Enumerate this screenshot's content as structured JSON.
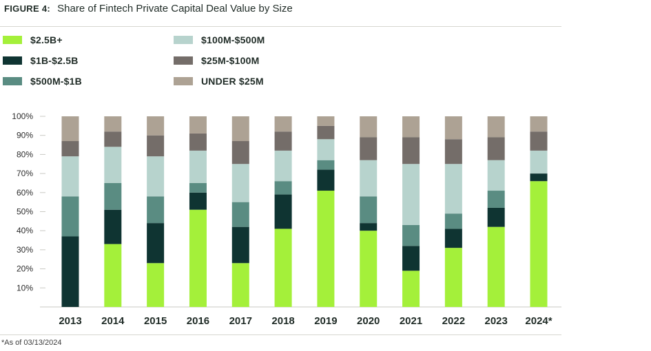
{
  "figure_label": "FIGURE 4:",
  "chart_data": {
    "type": "bar",
    "stacked": true,
    "title": "Share of Fintech Private Capital Deal Value by Size",
    "categories": [
      "2013",
      "2014",
      "2015",
      "2016",
      "2017",
      "2018",
      "2019",
      "2020",
      "2021",
      "2022",
      "2023",
      "2024*"
    ],
    "ylim": [
      0,
      100
    ],
    "yticks": [
      "10%",
      "20%",
      "30%",
      "40%",
      "50%",
      "60%",
      "70%",
      "80%",
      "90%",
      "100%"
    ],
    "series": [
      {
        "name": "$2.5B+",
        "color": "#a4f03a",
        "values": [
          0,
          33,
          23,
          51,
          23,
          41,
          61,
          40,
          19,
          31,
          42,
          66
        ]
      },
      {
        "name": "$1B-$2.5B",
        "color": "#0f3432",
        "values": [
          37,
          18,
          21,
          9,
          19,
          18,
          11,
          4,
          13,
          10,
          10,
          4
        ]
      },
      {
        "name": "$500M-$1B",
        "color": "#5a8c82",
        "values": [
          21,
          14,
          14,
          5,
          13,
          7,
          5,
          14,
          11,
          8,
          9,
          0
        ]
      },
      {
        "name": "$100M-$500M",
        "color": "#b7d3cd",
        "values": [
          21,
          19,
          21,
          17,
          20,
          16,
          11,
          19,
          32,
          26,
          16,
          12
        ]
      },
      {
        "name": "$25M-$100M",
        "color": "#746d69",
        "values": [
          8,
          8,
          11,
          9,
          12,
          10,
          7,
          12,
          14,
          13,
          12,
          10
        ]
      },
      {
        "name": "UNDER $25M",
        "color": "#ada294",
        "values": [
          13,
          8,
          10,
          9,
          13,
          8,
          5,
          11,
          11,
          12,
          11,
          8
        ]
      }
    ]
  },
  "footnote": "*As of 03/13/2024"
}
